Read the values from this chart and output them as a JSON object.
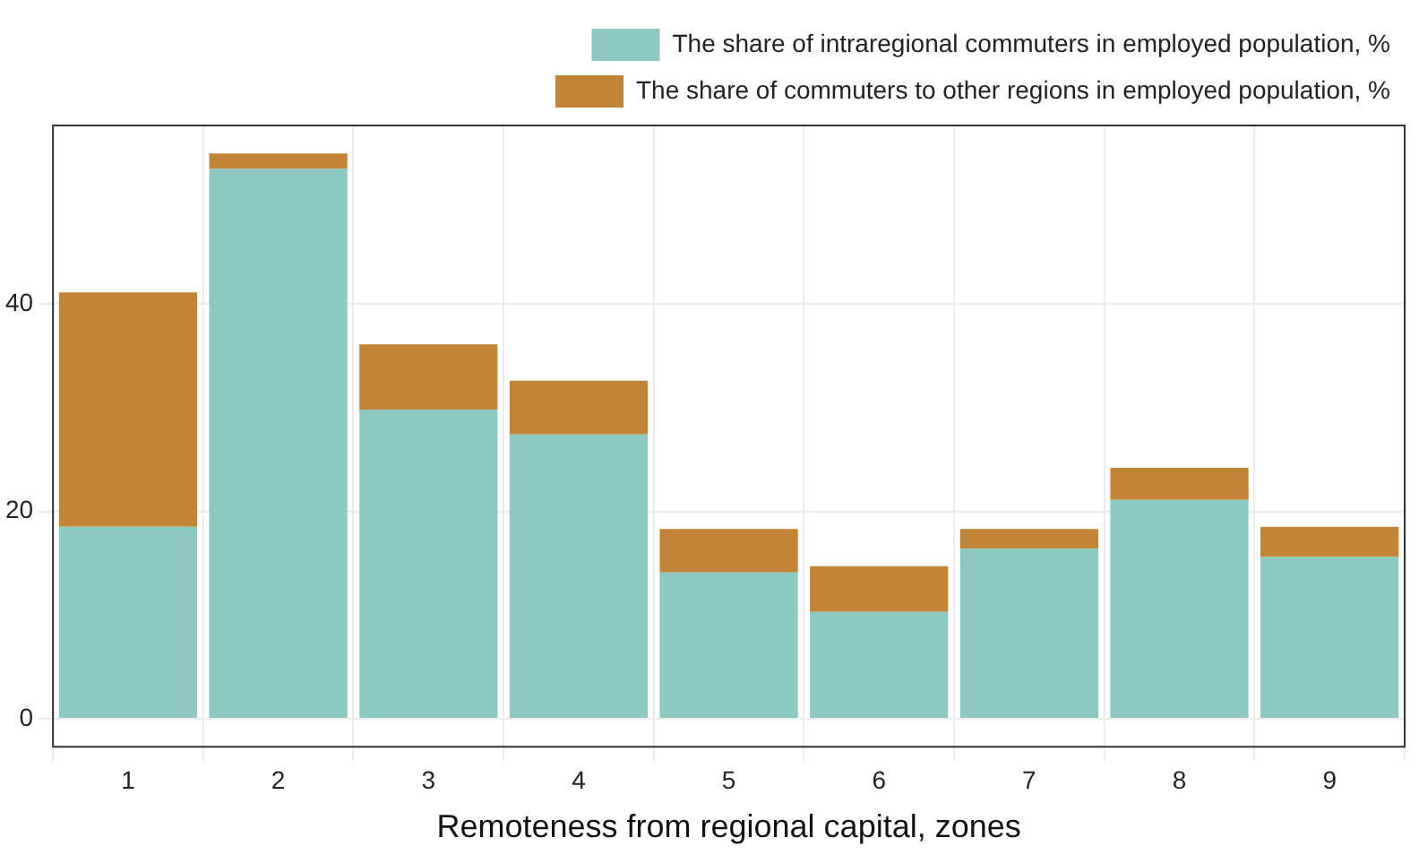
{
  "chart_data": {
    "type": "bar",
    "stacked": true,
    "xlabel": "Remoteness from regional capital, zones",
    "categories": [
      "1",
      "2",
      "3",
      "4",
      "5",
      "6",
      "7",
      "8",
      "9"
    ],
    "series": [
      {
        "name": "The share of intraregional commuters in employed population, %",
        "color": "#8cc9c0",
        "values": [
          18.5,
          53.0,
          29.8,
          27.4,
          14.1,
          10.3,
          16.4,
          21.1,
          15.6
        ]
      },
      {
        "name": "The share of commuters to other regions in employed population, %",
        "color": "#c28436",
        "values": [
          22.6,
          1.5,
          6.3,
          5.2,
          4.2,
          4.4,
          1.9,
          3.1,
          2.9
        ]
      }
    ],
    "ylim": [
      -2.7,
      57.2
    ],
    "yticks": [
      0,
      20,
      40
    ],
    "grid": true,
    "legend": "top right"
  }
}
